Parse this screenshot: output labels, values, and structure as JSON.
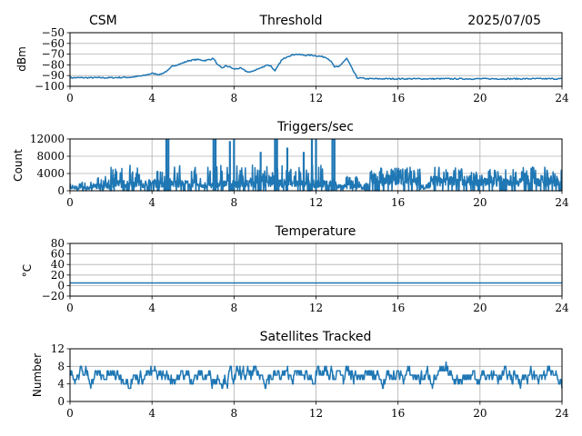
{
  "header": {
    "station": "CSM",
    "date": "2025/07/05"
  },
  "chart_data": [
    {
      "type": "line",
      "title": "Threshold",
      "ylabel": "dBm",
      "xlim": [
        0,
        24
      ],
      "ylim": [
        -100,
        -50
      ],
      "x_ticks": [
        0,
        4,
        8,
        12,
        16,
        20,
        24
      ],
      "y_ticks": [
        -100,
        -90,
        -80,
        -70,
        -60,
        -50
      ],
      "y_tick_labels": [
        "−100",
        "−90",
        "−80",
        "−70",
        "−60",
        "−50"
      ],
      "grid": true,
      "color": "#1f77b4",
      "x": [
        0,
        2,
        3,
        3.6,
        4.0,
        4.4,
        4.8,
        5.0,
        5.4,
        5.8,
        6.2,
        6.6,
        7.0,
        7.2,
        7.4,
        7.6,
        7.8,
        8.0,
        8.3,
        8.6,
        8.8,
        9.0,
        9.3,
        9.6,
        9.8,
        10.0,
        10.3,
        10.6,
        11.0,
        11.4,
        11.8,
        12.2,
        12.5,
        12.7,
        12.9,
        13.1,
        13.3,
        13.5,
        13.8,
        14.0,
        14.5,
        16,
        18,
        20,
        22,
        24
      ],
      "values": [
        -92,
        -92,
        -91.5,
        -90,
        -88,
        -89,
        -85,
        -81,
        -79,
        -76,
        -75,
        -76,
        -74,
        -80,
        -83,
        -81,
        -82,
        -84,
        -83,
        -86,
        -87,
        -85,
        -83,
        -80,
        -81,
        -86,
        -76,
        -72,
        -70,
        -71,
        -71,
        -72,
        -73,
        -76,
        -82,
        -82,
        -78,
        -74,
        -85,
        -92,
        -93,
        -93,
        -93,
        -93,
        -93,
        -93
      ]
    },
    {
      "type": "line",
      "title": "Triggers/sec",
      "ylabel": "Count",
      "xlim": [
        0,
        24
      ],
      "ylim": [
        0,
        12000
      ],
      "x_ticks": [
        0,
        4,
        8,
        12,
        16,
        20,
        24
      ],
      "y_ticks": [
        0,
        4000,
        8000,
        12000
      ],
      "grid": true,
      "color": "#1f77b4",
      "segments": [
        {
          "x": [
            0,
            1
          ],
          "min": 0,
          "base": 1000,
          "max": 2000
        },
        {
          "x": [
            1,
            2
          ],
          "min": 0,
          "base": 1500,
          "max": 3500
        },
        {
          "x": [
            2,
            3
          ],
          "min": 0,
          "base": 2500,
          "max": 6000
        },
        {
          "x": [
            3,
            4.5
          ],
          "min": 0,
          "base": 2500,
          "max": 5500
        },
        {
          "x": [
            4.5,
            6
          ],
          "min": 0,
          "base": 2500,
          "max": 6000
        },
        {
          "x": [
            6,
            7
          ],
          "min": 0,
          "base": 2000,
          "max": 5500
        },
        {
          "x": [
            7,
            8.5
          ],
          "min": 0,
          "base": 2500,
          "max": 6000
        },
        {
          "x": [
            8.5,
            10
          ],
          "min": 0,
          "base": 2500,
          "max": 6000
        },
        {
          "x": [
            10,
            11.5
          ],
          "min": 0,
          "base": 2500,
          "max": 6000
        },
        {
          "x": [
            11.5,
            13
          ],
          "min": 0,
          "base": 2500,
          "max": 6000
        },
        {
          "x": [
            13,
            14.2
          ],
          "min": 0,
          "base": 1500,
          "max": 3500
        },
        {
          "x": [
            14.2,
            14.6
          ],
          "min": 0,
          "base": 1000,
          "max": 2000
        },
        {
          "x": [
            14.6,
            17.1
          ],
          "min": 0,
          "base": 3800,
          "max": 5500
        },
        {
          "x": [
            17.1,
            17.6
          ],
          "min": 0,
          "base": 1200,
          "max": 2000
        },
        {
          "x": [
            17.6,
            24
          ],
          "min": 0,
          "base": 3500,
          "max": 5500
        }
      ],
      "spikes": [
        {
          "x": 4.7,
          "y": 12000
        },
        {
          "x": 4.8,
          "y": 12000
        },
        {
          "x": 7.0,
          "y": 12000
        },
        {
          "x": 7.1,
          "y": 12000
        },
        {
          "x": 7.8,
          "y": 11500
        },
        {
          "x": 8.0,
          "y": 12000
        },
        {
          "x": 10.0,
          "y": 12000
        },
        {
          "x": 10.1,
          "y": 12000
        },
        {
          "x": 10.6,
          "y": 10000
        },
        {
          "x": 11.8,
          "y": 12000
        },
        {
          "x": 12.0,
          "y": 12000
        },
        {
          "x": 12.8,
          "y": 12000
        },
        {
          "x": 12.9,
          "y": 12000
        },
        {
          "x": 11.4,
          "y": 9000
        },
        {
          "x": 9.3,
          "y": 9000
        }
      ]
    },
    {
      "type": "line",
      "title": "Temperature",
      "ylabel": "°C",
      "xlim": [
        0,
        24
      ],
      "ylim": [
        -20,
        80
      ],
      "x_ticks": [
        0,
        4,
        8,
        12,
        16,
        20,
        24
      ],
      "y_ticks": [
        -20,
        0,
        20,
        40,
        60,
        80
      ],
      "y_tick_labels": [
        "−20",
        "0",
        "20",
        "40",
        "60",
        "80"
      ],
      "grid": true,
      "color": "#1f77b4",
      "x": [
        0,
        24
      ],
      "values": [
        5,
        5
      ]
    },
    {
      "type": "line",
      "title": "Satellites Tracked",
      "ylabel": "Number",
      "xlim": [
        0,
        24
      ],
      "ylim": [
        0,
        12
      ],
      "x_ticks": [
        0,
        4,
        8,
        12,
        16,
        20,
        24
      ],
      "y_ticks": [
        0,
        4,
        8,
        12
      ],
      "grid": true,
      "color": "#1f77b4",
      "level": 5.8,
      "range": [
        2,
        10
      ]
    }
  ]
}
